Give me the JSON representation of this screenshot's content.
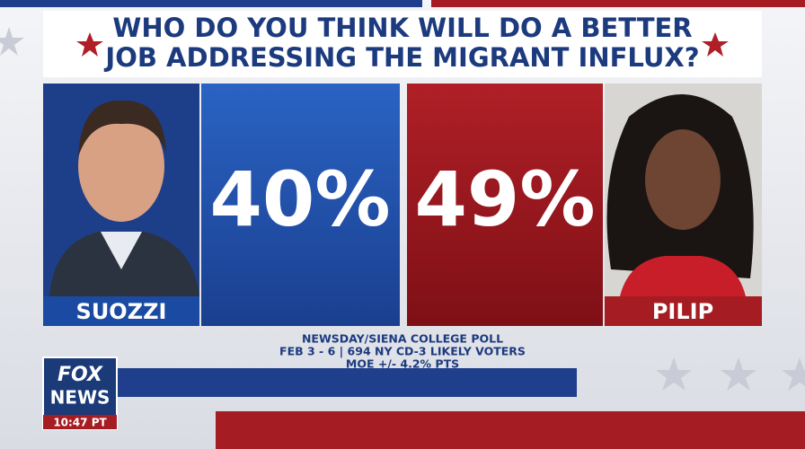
{
  "title_lines": [
    "WHO DO YOU THINK WILL DO A BETTER",
    "JOB ADDRESSING THE MIGRANT INFLUX?"
  ],
  "candidates": [
    {
      "name": "SUOZZI",
      "percent": "40%"
    },
    {
      "name": "PILIP",
      "percent": "49%"
    }
  ],
  "source_lines": [
    "NEWSDAY/SIENA COLLEGE POLL",
    "FEB 3 - 6 | 694 NY CD-3 LIKELY VOTERS",
    "MOE +/- 4.2% PTS"
  ],
  "logo": {
    "line1": "FOX",
    "line2": "NEWS",
    "time": "10:47 PT"
  }
}
